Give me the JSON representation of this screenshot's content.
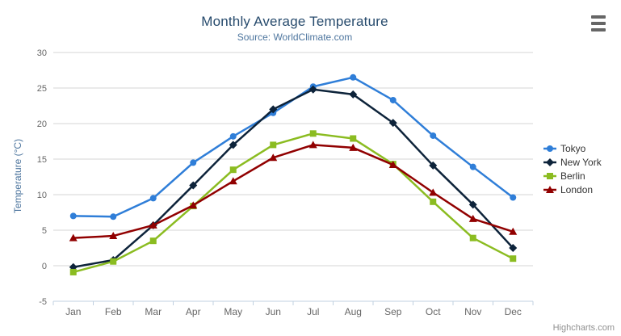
{
  "chart": {
    "subtitle": "Source: WorldClimate.com",
    "credits": "Highcharts.com",
    "menu_icon": "hamburger-menu-icon",
    "background_color": "#ffffff",
    "grid_color": "#d4d4d4",
    "axis_line_color": "#c0d0e0",
    "title_color": "#274b6d",
    "subtitle_color": "#4d759e",
    "tick_label_color": "#666666",
    "legend_text_color": "#333333"
  },
  "chart_data": {
    "type": "line",
    "title": "Monthly Average Temperature",
    "subtitle": "Source: WorldClimate.com",
    "xlabel": "",
    "ylabel": "Temperature (°C)",
    "categories": [
      "Jan",
      "Feb",
      "Mar",
      "Apr",
      "May",
      "Jun",
      "Jul",
      "Aug",
      "Sep",
      "Oct",
      "Nov",
      "Dec"
    ],
    "ylim": [
      -5,
      30
    ],
    "yTicks": [
      -5,
      0,
      5,
      10,
      15,
      20,
      25,
      30
    ],
    "grid": true,
    "legend_position": "right",
    "series": [
      {
        "name": "Tokyo",
        "color": "#2f7ed8",
        "marker": "circle",
        "values": [
          7.0,
          6.9,
          9.5,
          14.5,
          18.2,
          21.5,
          25.2,
          26.5,
          23.3,
          18.3,
          13.9,
          9.6
        ]
      },
      {
        "name": "New York",
        "color": "#0d233a",
        "marker": "diamond",
        "values": [
          -0.2,
          0.8,
          5.7,
          11.3,
          17.0,
          22.0,
          24.8,
          24.1,
          20.1,
          14.1,
          8.6,
          2.5
        ]
      },
      {
        "name": "Berlin",
        "color": "#8bbc21",
        "marker": "square",
        "values": [
          -0.9,
          0.6,
          3.5,
          8.4,
          13.5,
          17.0,
          18.6,
          17.9,
          14.3,
          9.0,
          3.9,
          1.0
        ]
      },
      {
        "name": "London",
        "color": "#910000",
        "marker": "triangle",
        "values": [
          3.9,
          4.2,
          5.7,
          8.5,
          11.9,
          15.2,
          17.0,
          16.6,
          14.2,
          10.3,
          6.6,
          4.8
        ]
      }
    ]
  }
}
